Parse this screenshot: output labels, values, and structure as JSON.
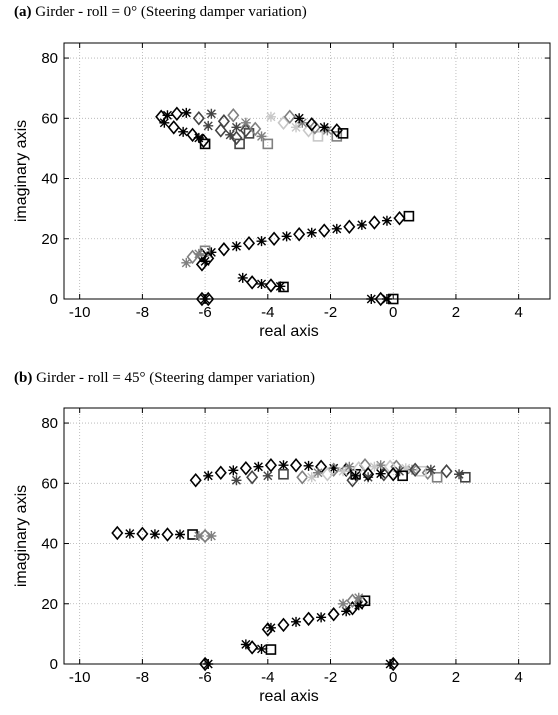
{
  "panels": [
    {
      "tag": "(a)",
      "title": "Girder - roll = 0° (Steering damper variation)"
    },
    {
      "tag": "(b)",
      "title": "Girder - roll = 45° (Steering damper variation)"
    }
  ],
  "colors": {
    "black": "#000000",
    "dark": "#444444",
    "mid": "#808080",
    "light": "#c8c8c8",
    "grid": "#b0b0b0"
  },
  "chart_data": [
    {
      "type": "scatter",
      "title": "(a) Girder - roll = 0° (Steering damper variation)",
      "xlabel": "real axis",
      "ylabel": "imaginary axis",
      "xlim": [
        -10.5,
        5
      ],
      "ylim": [
        0,
        85
      ],
      "xticks": [
        -10,
        -8,
        -6,
        -4,
        -2,
        0,
        2,
        4
      ],
      "yticks": [
        0,
        20,
        40,
        60,
        80
      ],
      "grid": true,
      "series": [
        {
          "color": "black",
          "x": [
            -7.4,
            -7.3,
            -7.0,
            -6.7,
            -6.4,
            -6.2,
            -6.05,
            -6.0
          ],
          "y": [
            60.5,
            58.5,
            57,
            55.5,
            54.5,
            53.5,
            52.5,
            51.5
          ]
        },
        {
          "color": "black",
          "x": [
            -7.2,
            -6.9,
            -6.6
          ],
          "y": [
            61,
            61.5,
            61.8
          ]
        },
        {
          "color": "dark",
          "x": [
            -6.2,
            -5.9,
            -5.5,
            -5.2,
            -5.0,
            -4.9
          ],
          "y": [
            60,
            57.5,
            56,
            54.5,
            53.5,
            51.5
          ]
        },
        {
          "color": "dark",
          "x": [
            -5.8,
            -5.4,
            -5.0,
            -4.7,
            -4.6
          ],
          "y": [
            61.5,
            59,
            57,
            56,
            55
          ]
        },
        {
          "color": "mid",
          "x": [
            -5.1,
            -4.7,
            -4.4,
            -4.2,
            -4.0
          ],
          "y": [
            61,
            58.5,
            56.5,
            54,
            51.5
          ]
        },
        {
          "color": "light",
          "x": [
            -3.9,
            -3.5,
            -3.1,
            -2.7,
            -2.4
          ],
          "y": [
            60.5,
            58.5,
            57,
            56,
            54
          ]
        },
        {
          "color": "mid",
          "x": [
            -3.3,
            -2.9,
            -2.5,
            -2.1,
            -1.8
          ],
          "y": [
            60.5,
            58.5,
            57,
            56,
            54
          ]
        },
        {
          "color": "black",
          "x": [
            -3.0,
            -2.6,
            -2.2,
            -1.8,
            -1.6
          ],
          "y": [
            60,
            58,
            57,
            56,
            55
          ]
        },
        {
          "color": "black",
          "x": [
            -6.1,
            -5.8,
            -5.4,
            -5.0,
            -4.6,
            -4.2,
            -3.8,
            -3.4,
            -3.0,
            -2.6,
            -2.2,
            -1.8,
            -1.4,
            -1.0,
            -0.6,
            -0.2,
            0.2,
            0.5
          ],
          "y": [
            14.5,
            15.5,
            16.5,
            17.5,
            18.5,
            19.2,
            20,
            20.8,
            21.5,
            22,
            22.7,
            23.3,
            24,
            24.6,
            25.4,
            26,
            26.8,
            27.5
          ]
        },
        {
          "color": "mid",
          "x": [
            -6.6,
            -6.4,
            -6.2,
            -6.0
          ],
          "y": [
            12,
            14,
            15,
            16
          ]
        },
        {
          "color": "black",
          "x": [
            -6.1,
            -6.0,
            -5.9
          ],
          "y": [
            11.5,
            12.5,
            13.5
          ]
        },
        {
          "color": "black",
          "x": [
            -4.8,
            -4.5,
            -4.2,
            -3.9,
            -3.6,
            -3.5
          ],
          "y": [
            7,
            5.5,
            5,
            4.5,
            4.2,
            4
          ]
        },
        {
          "color": "black",
          "x": [
            -6.1,
            -6.0,
            -5.9
          ],
          "y": [
            0,
            0,
            0
          ]
        },
        {
          "color": "black",
          "x": [
            -0.7,
            -0.4,
            -0.2,
            0.0
          ],
          "y": [
            0,
            0,
            0,
            0
          ]
        }
      ]
    },
    {
      "type": "scatter",
      "title": "(b) Girder - roll = 45° (Steering damper variation)",
      "xlabel": "real axis",
      "ylabel": "imaginary axis",
      "xlim": [
        -10.5,
        5
      ],
      "ylim": [
        0,
        85
      ],
      "xticks": [
        -10,
        -8,
        -6,
        -4,
        -2,
        0,
        2,
        4
      ],
      "yticks": [
        0,
        20,
        40,
        60,
        80
      ],
      "grid": true,
      "series": [
        {
          "color": "black",
          "x": [
            -6.3,
            -5.9,
            -5.5,
            -5.1,
            -4.7,
            -4.3,
            -3.9,
            -3.5,
            -3.1,
            -2.7,
            -2.3,
            -1.9,
            -1.5,
            -1.2
          ],
          "y": [
            61,
            62.5,
            63.5,
            64.3,
            65,
            65.5,
            66,
            66,
            66,
            65.8,
            65.5,
            65,
            64.5,
            63
          ]
        },
        {
          "color": "dark",
          "x": [
            -5.0,
            -4.5,
            -4.0,
            -3.5
          ],
          "y": [
            61,
            62,
            62.5,
            63
          ]
        },
        {
          "color": "mid",
          "x": [
            -2.9,
            -2.4,
            -1.9,
            -1.4,
            -0.9,
            -0.4,
            0.1,
            0.6,
            1.1,
            1.4
          ],
          "y": [
            62,
            63.5,
            64.5,
            65.5,
            66,
            66,
            65.5,
            64.5,
            63.5,
            62
          ]
        },
        {
          "color": "light",
          "x": [
            -2.6,
            -2.1,
            -1.6,
            -1.1,
            -0.6,
            -0.1,
            0.4,
            0.9
          ],
          "y": [
            62,
            63,
            64,
            65,
            65.5,
            65.5,
            65,
            64
          ]
        },
        {
          "color": "dark",
          "x": [
            -1.3,
            -0.8,
            -0.3,
            0.2,
            0.7,
            1.2,
            1.7,
            2.1,
            2.3
          ],
          "y": [
            61,
            62,
            63,
            64,
            64.5,
            64.5,
            64,
            63,
            62
          ]
        },
        {
          "color": "black",
          "x": [
            -1.2,
            -0.8,
            -0.4,
            0.0,
            0.3
          ],
          "y": [
            62.5,
            63,
            63.2,
            63,
            62.5
          ]
        },
        {
          "color": "black",
          "x": [
            -8.8,
            -8.4,
            -8.0,
            -7.6,
            -7.2,
            -6.8,
            -6.4
          ],
          "y": [
            43.5,
            43.3,
            43.2,
            43.1,
            43,
            43,
            43
          ]
        },
        {
          "color": "mid",
          "x": [
            -6.2,
            -6.0,
            -5.8
          ],
          "y": [
            42.5,
            42.5,
            42.5
          ]
        },
        {
          "color": "black",
          "x": [
            -3.5,
            -3.1,
            -2.7,
            -2.3,
            -1.9,
            -1.5,
            -1.3,
            -1.1,
            -1.0,
            -0.9
          ],
          "y": [
            13,
            14,
            15,
            15.5,
            16.5,
            17.5,
            18.5,
            19.5,
            20.5,
            21
          ]
        },
        {
          "color": "mid",
          "x": [
            -1.6,
            -1.3,
            -1.1
          ],
          "y": [
            20,
            21,
            22
          ]
        },
        {
          "color": "black",
          "x": [
            -4.0,
            -3.9
          ],
          "y": [
            11.5,
            12
          ]
        },
        {
          "color": "black",
          "x": [
            -4.7,
            -4.5,
            -4.2,
            -3.9
          ],
          "y": [
            6.5,
            5.5,
            5,
            4.8
          ]
        },
        {
          "color": "black",
          "x": [
            -6.0,
            -5.9
          ],
          "y": [
            0,
            0
          ]
        },
        {
          "color": "black",
          "x": [
            -0.1,
            0.0
          ],
          "y": [
            0,
            0
          ]
        }
      ]
    }
  ]
}
